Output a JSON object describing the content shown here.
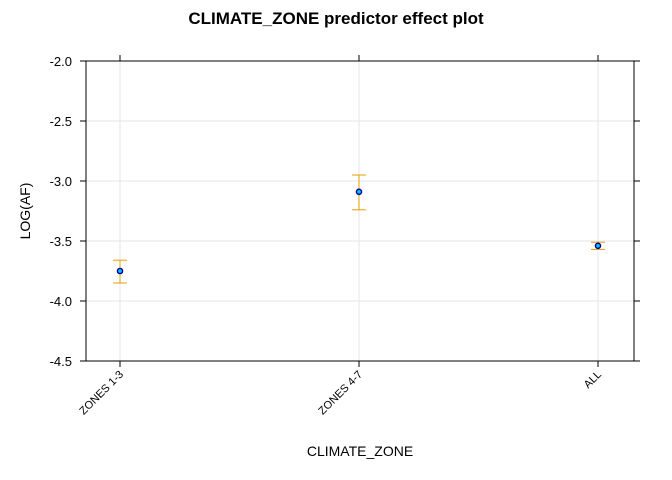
{
  "chart_data": {
    "type": "scatter",
    "title": "CLIMATE_ZONE predictor effect plot",
    "xlabel": "CLIMATE_ZONE",
    "ylabel": "LOG(AF)",
    "categories": [
      "ZONES 1-3",
      "ZONES 4-7",
      "ALL"
    ],
    "series": [
      {
        "values": [
          -3.75,
          -3.09,
          -3.54
        ],
        "lower": [
          -3.85,
          -3.24,
          -3.57
        ],
        "upper": [
          -3.66,
          -2.95,
          -3.51
        ]
      }
    ],
    "ylim": [
      -4.5,
      -2.0
    ],
    "yticks": [
      "-2.0",
      "-2.5",
      "-3.0",
      "-3.5",
      "-4.0",
      "-4.5"
    ],
    "grid": true,
    "colors": {
      "point_fill": "#00BFFF",
      "point_stroke": "#00008B",
      "error_bar": "#E69F00",
      "grid": "#E6E6E6"
    }
  }
}
